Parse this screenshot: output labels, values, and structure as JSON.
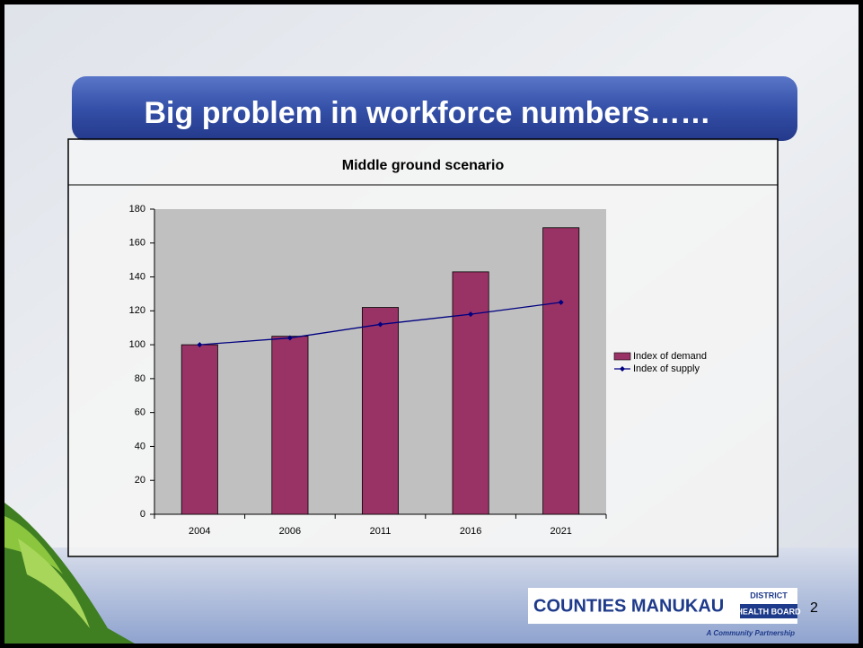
{
  "slide_title": "Big problem in workforce numbers……",
  "chart_data": {
    "type": "bar",
    "title": "Middle ground scenario",
    "categories": [
      "2004",
      "2006",
      "2011",
      "2016",
      "2021"
    ],
    "series": [
      {
        "name": "Index of demand",
        "type": "bar",
        "color": "#993366",
        "values": [
          100,
          105,
          122,
          143,
          169
        ]
      },
      {
        "name": "Index of supply",
        "type": "line",
        "color": "#000080",
        "values": [
          100,
          104,
          112,
          118,
          125
        ]
      }
    ],
    "ylim": [
      0,
      180
    ],
    "yticks": [
      0,
      20,
      40,
      60,
      80,
      100,
      120,
      140,
      160,
      180
    ],
    "grid": false,
    "legend": "right",
    "plot_background": "#c0c0c0"
  },
  "logo": {
    "name": "COUNTIES MANUKAU",
    "district": "DISTRICT",
    "board": "HEALTH BOARD",
    "tagline": "A Community Partnership"
  },
  "page_number": "2"
}
